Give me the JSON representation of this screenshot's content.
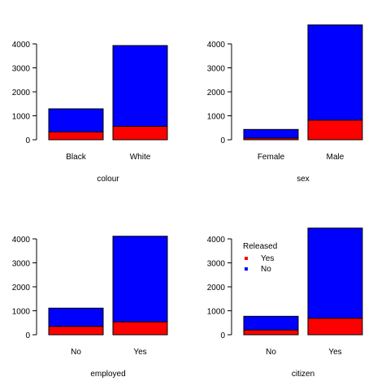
{
  "legend": {
    "title": "Released",
    "items": [
      {
        "label": "Yes",
        "color": "#ff0000"
      },
      {
        "label": "No",
        "color": "#0000ff"
      }
    ]
  },
  "chart_data": [
    {
      "type": "bar",
      "stacked": true,
      "xlabel": "colour",
      "categories": [
        "Black",
        "White"
      ],
      "series": [
        {
          "name": "Yes",
          "color": "#ff0000",
          "values": [
            330,
            560
          ]
        },
        {
          "name": "No",
          "color": "#0000ff",
          "values": [
            960,
            3370
          ]
        }
      ],
      "yticks": [
        0,
        1000,
        2000,
        3000,
        4000
      ],
      "ylim": [
        0,
        4800
      ]
    },
    {
      "type": "bar",
      "stacked": true,
      "xlabel": "sex",
      "categories": [
        "Female",
        "Male"
      ],
      "series": [
        {
          "name": "Yes",
          "color": "#ff0000",
          "values": [
            70,
            820
          ]
        },
        {
          "name": "No",
          "color": "#0000ff",
          "values": [
            360,
            3970
          ]
        }
      ],
      "yticks": [
        0,
        1000,
        2000,
        3000,
        4000
      ],
      "ylim": [
        0,
        4800
      ]
    },
    {
      "type": "bar",
      "stacked": true,
      "xlabel": "employed",
      "categories": [
        "No",
        "Yes"
      ],
      "series": [
        {
          "name": "Yes",
          "color": "#ff0000",
          "values": [
            350,
            540
          ]
        },
        {
          "name": "No",
          "color": "#0000ff",
          "values": [
            760,
            3570
          ]
        }
      ],
      "yticks": [
        0,
        1000,
        2000,
        3000,
        4000
      ],
      "ylim": [
        0,
        4400
      ]
    },
    {
      "type": "bar",
      "stacked": true,
      "xlabel": "citizen",
      "categories": [
        "No",
        "Yes"
      ],
      "series": [
        {
          "name": "Yes",
          "color": "#ff0000",
          "values": [
            200,
            690
          ]
        },
        {
          "name": "No",
          "color": "#0000ff",
          "values": [
            570,
            3760
          ]
        }
      ],
      "yticks": [
        0,
        1000,
        2000,
        3000,
        4000
      ],
      "ylim": [
        0,
        4450
      ]
    }
  ]
}
